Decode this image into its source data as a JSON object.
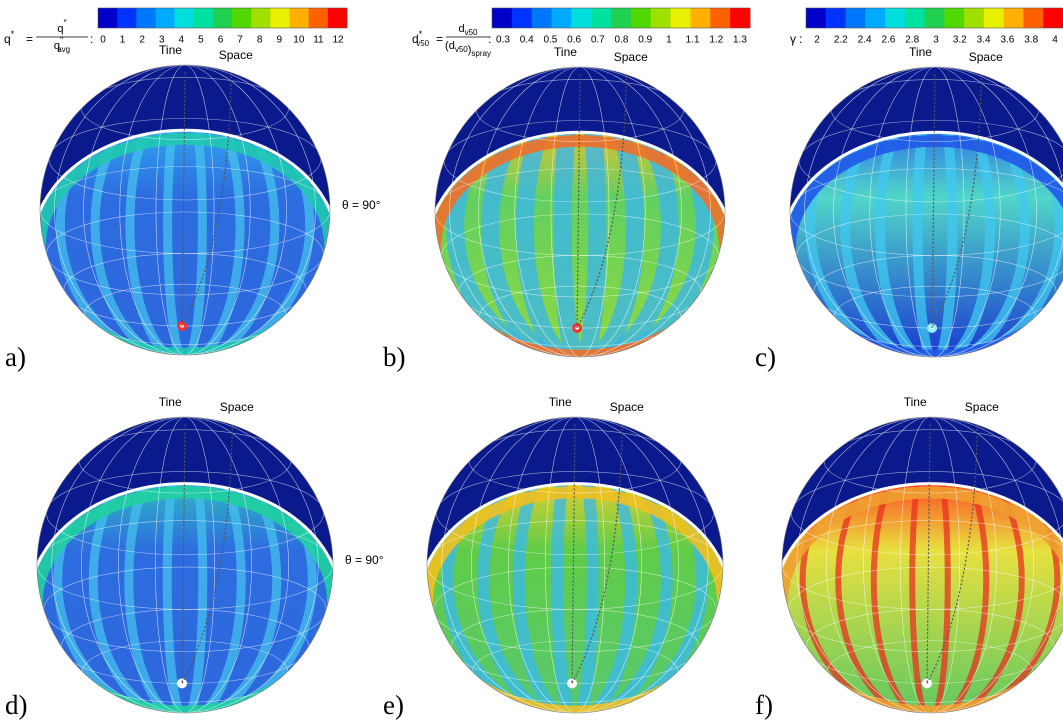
{
  "colorbars": [
    {
      "symbol": [
        {
          "t": "q",
          "sup": "*"
        }
      ],
      "eq": "=",
      "numerator": [
        {
          "t": "q",
          "sup": "″"
        }
      ],
      "denominator": [
        {
          "t": "q",
          "sup": "″",
          "sub": "avg"
        }
      ],
      "colon": ":",
      "ticks": [
        0,
        1,
        2,
        3,
        4,
        5,
        6,
        7,
        8,
        9,
        10,
        11,
        12
      ],
      "colors": [
        "#0000c8",
        "#0033ff",
        "#0077ff",
        "#00aaff",
        "#00dddd",
        "#00e0a0",
        "#20d050",
        "#50d800",
        "#a0e000",
        "#e8f000",
        "#ffb000",
        "#ff6000",
        "#ff0000"
      ]
    },
    {
      "symbol": [
        {
          "t": "d",
          "sup": "*",
          "sub": "v50"
        }
      ],
      "eq": "=",
      "numerator": [
        {
          "t": "d",
          "sub": "v50"
        }
      ],
      "denominator": [
        {
          "t": "(d",
          "sub": "v50"
        },
        {
          "t": ")",
          "sub": "spray"
        }
      ],
      "colon": ":",
      "ticks": [
        0.3,
        0.4,
        0.5,
        0.6,
        0.7,
        0.8,
        0.9,
        1,
        1.1,
        1.2,
        1.3
      ],
      "colors": [
        "#0000c8",
        "#0033ff",
        "#0077ff",
        "#00aaff",
        "#00dddd",
        "#00e0a0",
        "#20d050",
        "#50d800",
        "#a0e000",
        "#e8f000",
        "#ffb000",
        "#ff6000",
        "#ff0000"
      ]
    },
    {
      "symbol": [
        {
          "t": "γ"
        }
      ],
      "colon": ":",
      "ticks": [
        2,
        2.2,
        2.4,
        2.6,
        2.8,
        3,
        3.2,
        3.4,
        3.6,
        3.8,
        4
      ],
      "colors": [
        "#0000c8",
        "#0033ff",
        "#0077ff",
        "#00aaff",
        "#00dddd",
        "#00e0a0",
        "#20d050",
        "#50d800",
        "#a0e000",
        "#e8f000",
        "#ffb000",
        "#ff6000",
        "#ff0000"
      ]
    }
  ],
  "panels": [
    {
      "label": "a)",
      "tine": "Tine",
      "space": "Space",
      "angle": "θ = 90°"
    },
    {
      "label": "b)",
      "tine": "Tine",
      "space": "Space"
    },
    {
      "label": "c)",
      "tine": "Tine",
      "space": "Space"
    },
    {
      "label": "d)",
      "tine": "Tine",
      "space": "Space",
      "angle": "θ = 90°"
    },
    {
      "label": "e)",
      "tine": "Tine",
      "space": "Space"
    },
    {
      "label": "f)",
      "tine": "Tine",
      "space": "Space"
    }
  ]
}
